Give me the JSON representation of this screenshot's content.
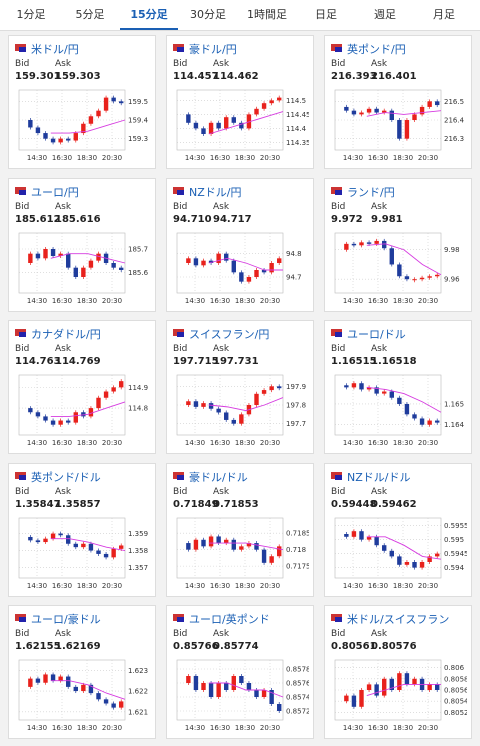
{
  "tabs": [
    "1分足",
    "5分足",
    "15分足",
    "30分足",
    "1時間足",
    "日足",
    "週足",
    "月足"
  ],
  "active_tab": 2,
  "bid_label": "Bid",
  "ask_label": "Ask",
  "time_labels": [
    "14:30",
    "16:30",
    "18:30",
    "20:30"
  ],
  "cards": [
    {
      "title": "米ドル/円",
      "bid": "159.301",
      "ask": "159.303",
      "yticks": [
        159.5,
        159.4,
        159.3
      ],
      "ylim": [
        159.25,
        159.55
      ],
      "closes": [
        159.4,
        159.36,
        159.33,
        159.3,
        159.28,
        159.3,
        159.29,
        159.33,
        159.38,
        159.42,
        159.45,
        159.52,
        159.5,
        159.49
      ],
      "ma": [
        159.33,
        159.33,
        159.34,
        159.37,
        159.4
      ]
    },
    {
      "title": "豪ドル/円",
      "bid": "114.457",
      "ask": "114.462",
      "yticks": [
        114.5,
        114.45,
        114.4,
        114.35
      ],
      "ylim": [
        114.33,
        114.53
      ],
      "closes": [
        114.45,
        114.42,
        114.4,
        114.38,
        114.42,
        114.4,
        114.44,
        114.42,
        114.4,
        114.45,
        114.47,
        114.49,
        114.5,
        114.51
      ],
      "ma": [
        114.38,
        114.4,
        114.42,
        114.44,
        114.46
      ]
    },
    {
      "title": "英ポンド/円",
      "bid": "216.393",
      "ask": "216.401",
      "yticks": [
        216.5,
        216.4,
        216.3
      ],
      "ylim": [
        216.25,
        216.55
      ],
      "closes": [
        216.47,
        216.45,
        216.43,
        216.44,
        216.46,
        216.44,
        216.45,
        216.4,
        216.3,
        216.4,
        216.43,
        216.47,
        216.5,
        216.48
      ],
      "ma": [
        216.42,
        216.44,
        216.43,
        216.44,
        216.45
      ]
    },
    {
      "title": "ユーロ/円",
      "bid": "185.612",
      "ask": "185.616",
      "yticks": [
        185.7,
        185.6
      ],
      "ylim": [
        185.52,
        185.76
      ],
      "closes": [
        185.64,
        185.68,
        185.66,
        185.7,
        185.67,
        185.68,
        185.62,
        185.58,
        185.62,
        185.65,
        185.68,
        185.64,
        185.62,
        185.61
      ],
      "ma": [
        185.66,
        185.68,
        185.68,
        185.66,
        185.64
      ]
    },
    {
      "title": "NZドル/円",
      "bid": "94.710",
      "ask": "94.717",
      "yticks": [
        94.8,
        94.7
      ],
      "ylim": [
        94.64,
        94.88
      ],
      "closes": [
        94.76,
        94.78,
        94.75,
        94.77,
        94.76,
        94.8,
        94.77,
        94.72,
        94.68,
        94.7,
        94.73,
        94.72,
        94.76,
        94.78
      ],
      "ma": [
        94.76,
        94.78,
        94.76,
        94.73,
        94.73
      ]
    },
    {
      "title": "ランド/円",
      "bid": "9.972",
      "ask": "9.981",
      "yticks": [
        9.98,
        9.96
      ],
      "ylim": [
        9.952,
        9.99
      ],
      "closes": [
        9.98,
        9.984,
        9.983,
        9.985,
        9.984,
        9.986,
        9.981,
        9.97,
        9.962,
        9.96,
        9.96,
        9.961,
        9.962,
        9.963
      ],
      "ma": [
        9.983,
        9.984,
        9.98,
        9.97,
        9.963
      ]
    },
    {
      "title": "カナダドル/円",
      "bid": "114.763",
      "ask": "114.769",
      "yticks": [
        114.9,
        114.8
      ],
      "ylim": [
        114.68,
        114.95
      ],
      "closes": [
        114.8,
        114.78,
        114.76,
        114.74,
        114.72,
        114.74,
        114.73,
        114.78,
        114.76,
        114.8,
        114.85,
        114.88,
        114.9,
        114.93
      ],
      "ma": [
        114.76,
        114.76,
        114.77,
        114.8,
        114.83
      ]
    },
    {
      "title": "スイスフラン/円",
      "bid": "197.715",
      "ask": "197.731",
      "yticks": [
        197.9,
        197.8,
        197.7
      ],
      "ylim": [
        197.65,
        197.95
      ],
      "closes": [
        197.8,
        197.82,
        197.79,
        197.81,
        197.78,
        197.76,
        197.72,
        197.7,
        197.75,
        197.8,
        197.86,
        197.88,
        197.9,
        197.89
      ],
      "ma": [
        197.8,
        197.79,
        197.77,
        197.8,
        197.84
      ]
    },
    {
      "title": "ユーロ/ドル",
      "bid": "1.16515",
      "ask": "1.16518",
      "yticks": [
        1.165,
        1.164
      ],
      "ylim": [
        1.1636,
        1.1663
      ],
      "closes": [
        1.1659,
        1.1658,
        1.166,
        1.1657,
        1.1658,
        1.1655,
        1.1656,
        1.1653,
        1.165,
        1.1645,
        1.1643,
        1.164,
        1.1642,
        1.1641
      ],
      "ma": [
        1.1658,
        1.1657,
        1.1655,
        1.1651,
        1.1646
      ]
    },
    {
      "title": "英ポンド/ドル",
      "bid": "1.35847",
      "ask": "1.35857",
      "yticks": [
        1.359,
        1.358,
        1.357
      ],
      "ylim": [
        1.3565,
        1.3598
      ],
      "closes": [
        1.3588,
        1.3586,
        1.3585,
        1.3587,
        1.359,
        1.3589,
        1.3584,
        1.3582,
        1.3584,
        1.358,
        1.3578,
        1.3576,
        1.3581,
        1.3583
      ],
      "ma": [
        1.3587,
        1.3587,
        1.3585,
        1.3582,
        1.358
      ]
    },
    {
      "title": "豪ドル/ドル",
      "bid": "0.71849",
      "ask": "0.71853",
      "yticks": [
        0.7185,
        0.718,
        0.7175
      ],
      "ylim": [
        0.7172,
        0.7189
      ],
      "closes": [
        0.7182,
        0.718,
        0.7183,
        0.7181,
        0.7184,
        0.7182,
        0.7183,
        0.718,
        0.7181,
        0.7182,
        0.718,
        0.7176,
        0.7178,
        0.7181
      ],
      "ma": [
        0.7182,
        0.7182,
        0.7182,
        0.7181,
        0.718
      ]
    },
    {
      "title": "NZドル/ドル",
      "bid": "0.59448",
      "ask": "0.59462",
      "yticks": [
        0.5955,
        0.595,
        0.5945,
        0.594
      ],
      "ylim": [
        0.5937,
        0.5957
      ],
      "closes": [
        0.5952,
        0.5951,
        0.5953,
        0.595,
        0.5951,
        0.5948,
        0.5946,
        0.5944,
        0.5941,
        0.5942,
        0.594,
        0.5942,
        0.5944,
        0.5945
      ],
      "ma": [
        0.5951,
        0.5951,
        0.5948,
        0.5944,
        0.5943
      ]
    },
    {
      "title": "ユーロ/豪ドル",
      "bid": "1.62155",
      "ask": "1.62169",
      "yticks": [
        1.623,
        1.622,
        1.621
      ],
      "ylim": [
        1.6207,
        1.6234
      ],
      "closes": [
        1.6222,
        1.6226,
        1.6224,
        1.6228,
        1.6225,
        1.6227,
        1.6222,
        1.622,
        1.6223,
        1.6219,
        1.6216,
        1.6214,
        1.6212,
        1.6215
      ],
      "ma": [
        1.6225,
        1.6225,
        1.6223,
        1.6219,
        1.6216
      ]
    },
    {
      "title": "ユーロ/英ポンド",
      "bid": "0.85766",
      "ask": "0.85774",
      "yticks": [
        0.8578,
        0.8576,
        0.8574,
        0.8572
      ],
      "ylim": [
        0.8571,
        0.8579
      ],
      "closes": [
        0.8576,
        0.8577,
        0.8575,
        0.8576,
        0.8574,
        0.8576,
        0.8575,
        0.8577,
        0.8576,
        0.8575,
        0.8574,
        0.8575,
        0.8573,
        0.8572
      ],
      "ma": [
        0.8576,
        0.8576,
        0.8575,
        0.8575,
        0.8574
      ]
    },
    {
      "title": "米ドル/スイスフラン",
      "bid": "0.80561",
      "ask": "0.80576",
      "yticks": [
        0.806,
        0.8058,
        0.8056,
        0.8054,
        0.8052
      ],
      "ylim": [
        0.8051,
        0.8061
      ],
      "closes": [
        0.8054,
        0.8055,
        0.8053,
        0.8056,
        0.8057,
        0.8055,
        0.8058,
        0.8056,
        0.8059,
        0.8057,
        0.8058,
        0.8056,
        0.8057,
        0.8056
      ],
      "ma": [
        0.8055,
        0.8056,
        0.8057,
        0.8057,
        0.8057
      ]
    }
  ]
}
